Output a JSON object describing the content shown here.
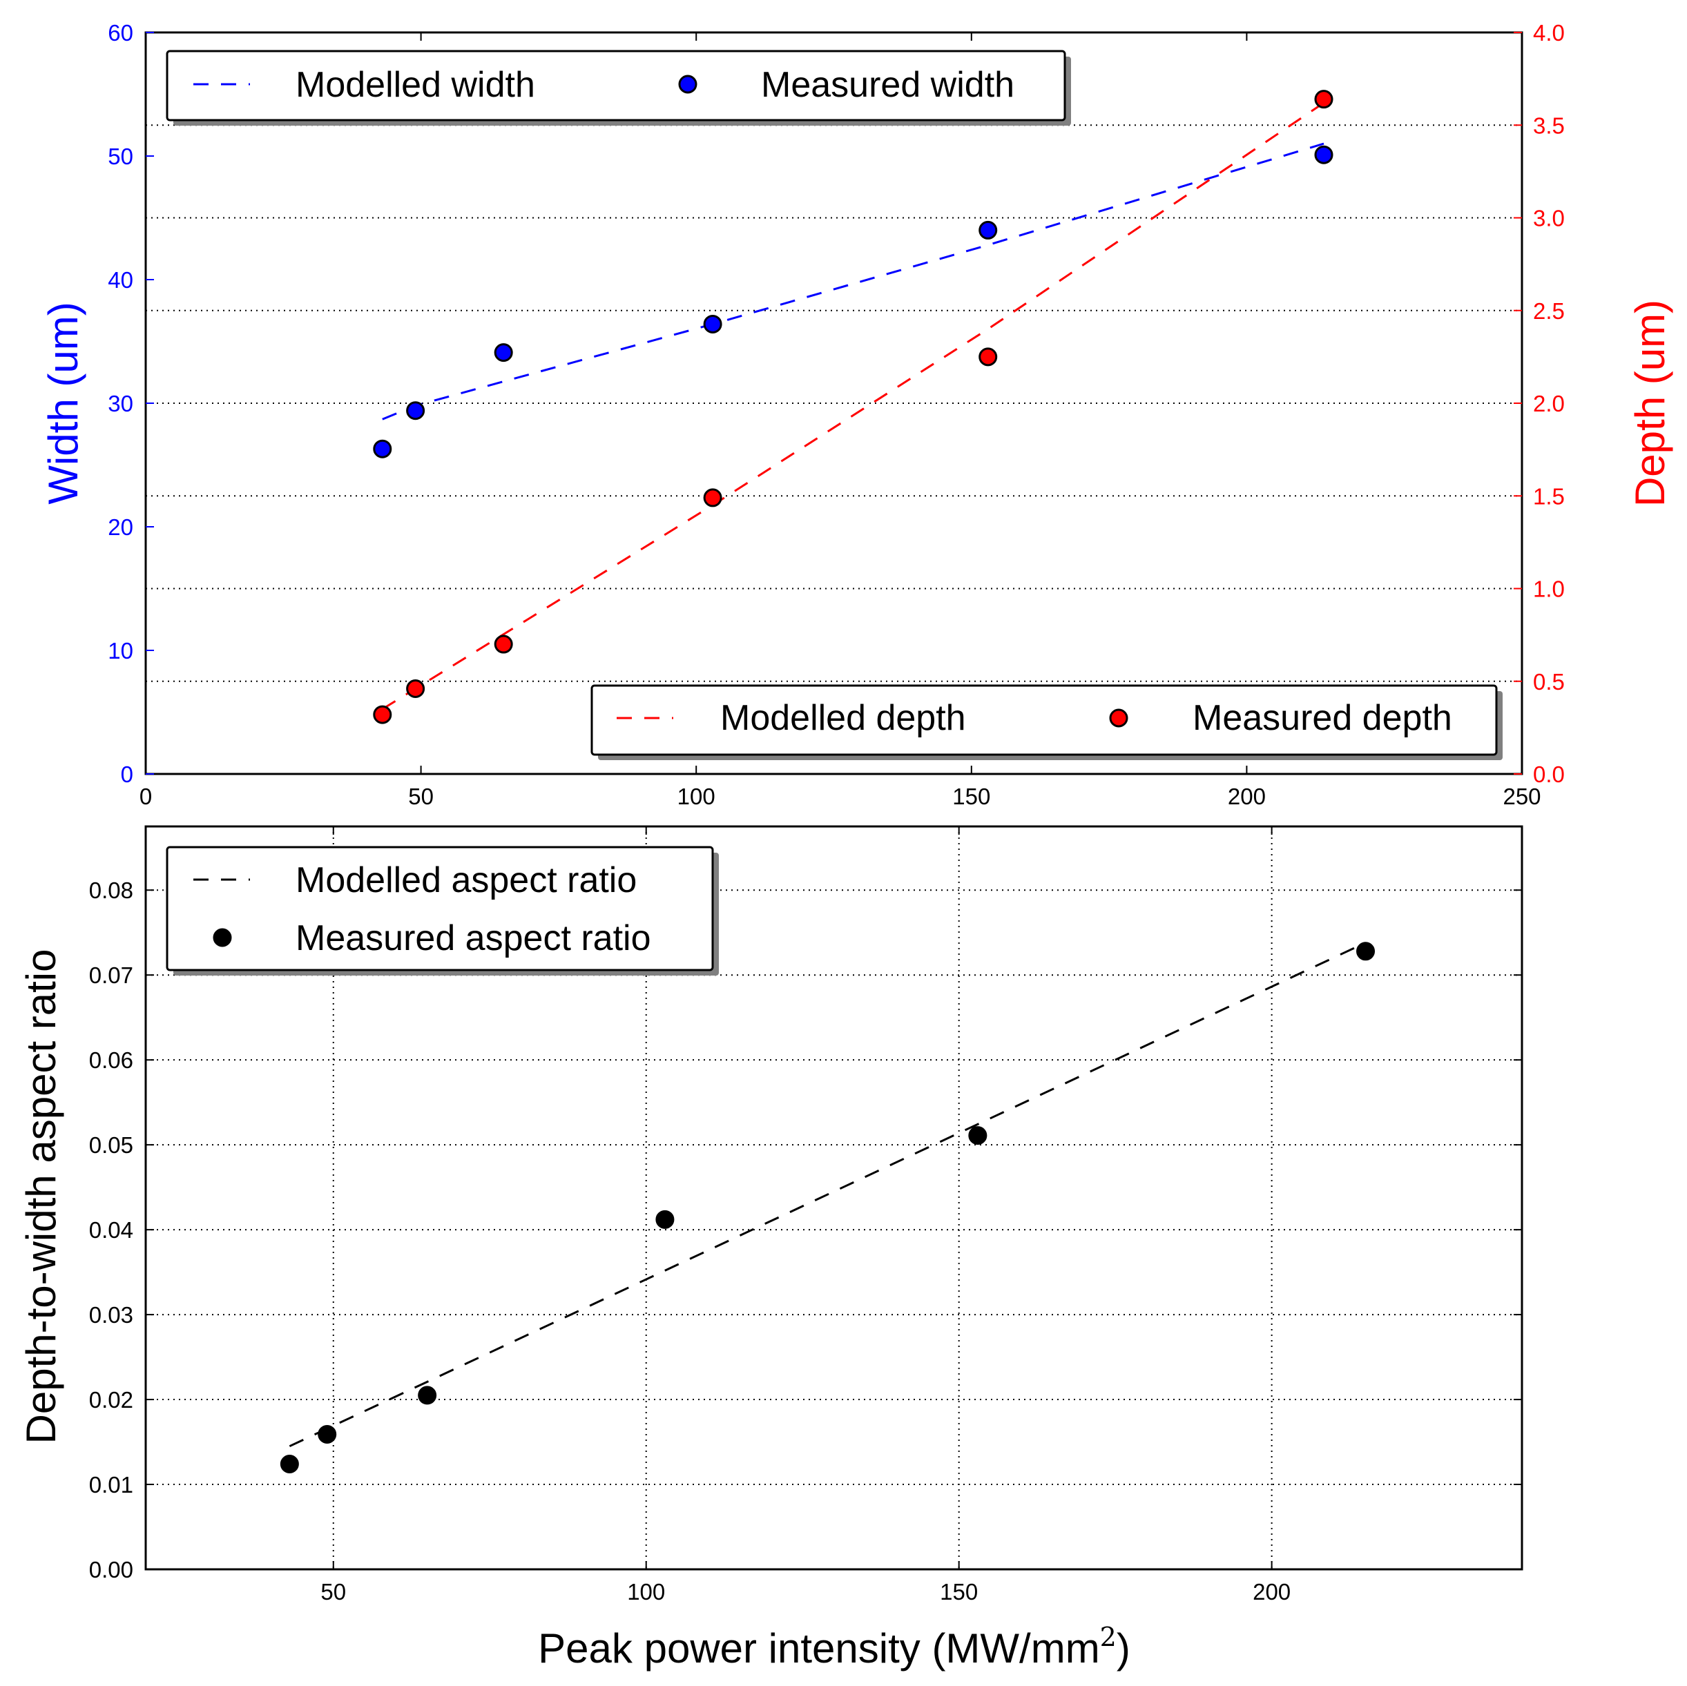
{
  "chart_data": [
    {
      "type": "scatter",
      "subtype": "dual-axis",
      "title": "",
      "xlabel": "",
      "ylabel_left": "Width (um)",
      "ylabel_right": "Depth (um)",
      "xlim": [
        0,
        250
      ],
      "ylim_left": [
        0,
        60
      ],
      "ylim_right": [
        0.0,
        4.0
      ],
      "x_ticks": [
        "0",
        "50",
        "100",
        "150",
        "200",
        "250"
      ],
      "y_ticks_left": [
        "0",
        "10",
        "20",
        "30",
        "40",
        "50",
        "60"
      ],
      "y_ticks_right": [
        "0.0",
        "0.5",
        "1.0",
        "1.5",
        "2.0",
        "2.5",
        "3.0",
        "3.5",
        "4.0"
      ],
      "grid": "horizontal dotted (right axis)",
      "series": [
        {
          "name": "Modelled width",
          "kind": "dashed-line",
          "axis": "left",
          "color": "#0000ff",
          "x": [
            43,
            49,
            103,
            153,
            214
          ],
          "y": [
            28.7,
            29.8,
            36.4,
            42.8,
            51.0
          ]
        },
        {
          "name": "Measured width",
          "kind": "marker",
          "axis": "left",
          "color": "#0000ff",
          "x": [
            43,
            49,
            65,
            103,
            153,
            214
          ],
          "y": [
            26.3,
            29.4,
            34.1,
            36.4,
            44.0,
            50.1
          ]
        },
        {
          "name": "Modelled depth",
          "kind": "dashed-line",
          "axis": "right",
          "color": "#ff0000",
          "x": [
            43,
            103,
            153,
            214
          ],
          "y": [
            0.35,
            1.45,
            2.4,
            3.62
          ]
        },
        {
          "name": "Measured depth",
          "kind": "marker",
          "axis": "right",
          "color": "#ff0000",
          "x": [
            43,
            49,
            65,
            103,
            153,
            214
          ],
          "y": [
            0.32,
            0.46,
            0.7,
            1.49,
            2.25,
            3.64
          ]
        }
      ],
      "legends": [
        {
          "placement": "top-left",
          "entries": [
            "Modelled width",
            "Measured width"
          ]
        },
        {
          "placement": "lower-right",
          "entries": [
            "Modelled depth",
            "Measured depth"
          ]
        }
      ]
    },
    {
      "type": "scatter",
      "title": "",
      "xlabel_prefix": "Peak power intensity (MW/mm",
      "xlabel_sup": "2",
      "xlabel_suffix": ")",
      "ylabel": "Depth-to-width aspect ratio",
      "xlim": [
        20,
        240
      ],
      "ylim": [
        0.0,
        0.0875
      ],
      "x_ticks": [
        "50",
        "100",
        "150",
        "200"
      ],
      "y_ticks": [
        "0.00",
        "0.01",
        "0.02",
        "0.03",
        "0.04",
        "0.05",
        "0.06",
        "0.07",
        "0.08"
      ],
      "grid": "both dotted",
      "series": [
        {
          "name": "Modelled aspect ratio",
          "kind": "dashed-line",
          "color": "#000000",
          "x": [
            43,
            215
          ],
          "y": [
            0.0145,
            0.0738
          ]
        },
        {
          "name": "Measured aspect ratio",
          "kind": "marker",
          "color": "#000000",
          "x": [
            43,
            49,
            65,
            103,
            153,
            215
          ],
          "y": [
            0.0124,
            0.0159,
            0.0205,
            0.0412,
            0.0511,
            0.0728
          ]
        }
      ],
      "legends": [
        {
          "placement": "top-left",
          "entries": [
            "Modelled aspect ratio",
            "Measured aspect ratio"
          ]
        }
      ]
    }
  ]
}
